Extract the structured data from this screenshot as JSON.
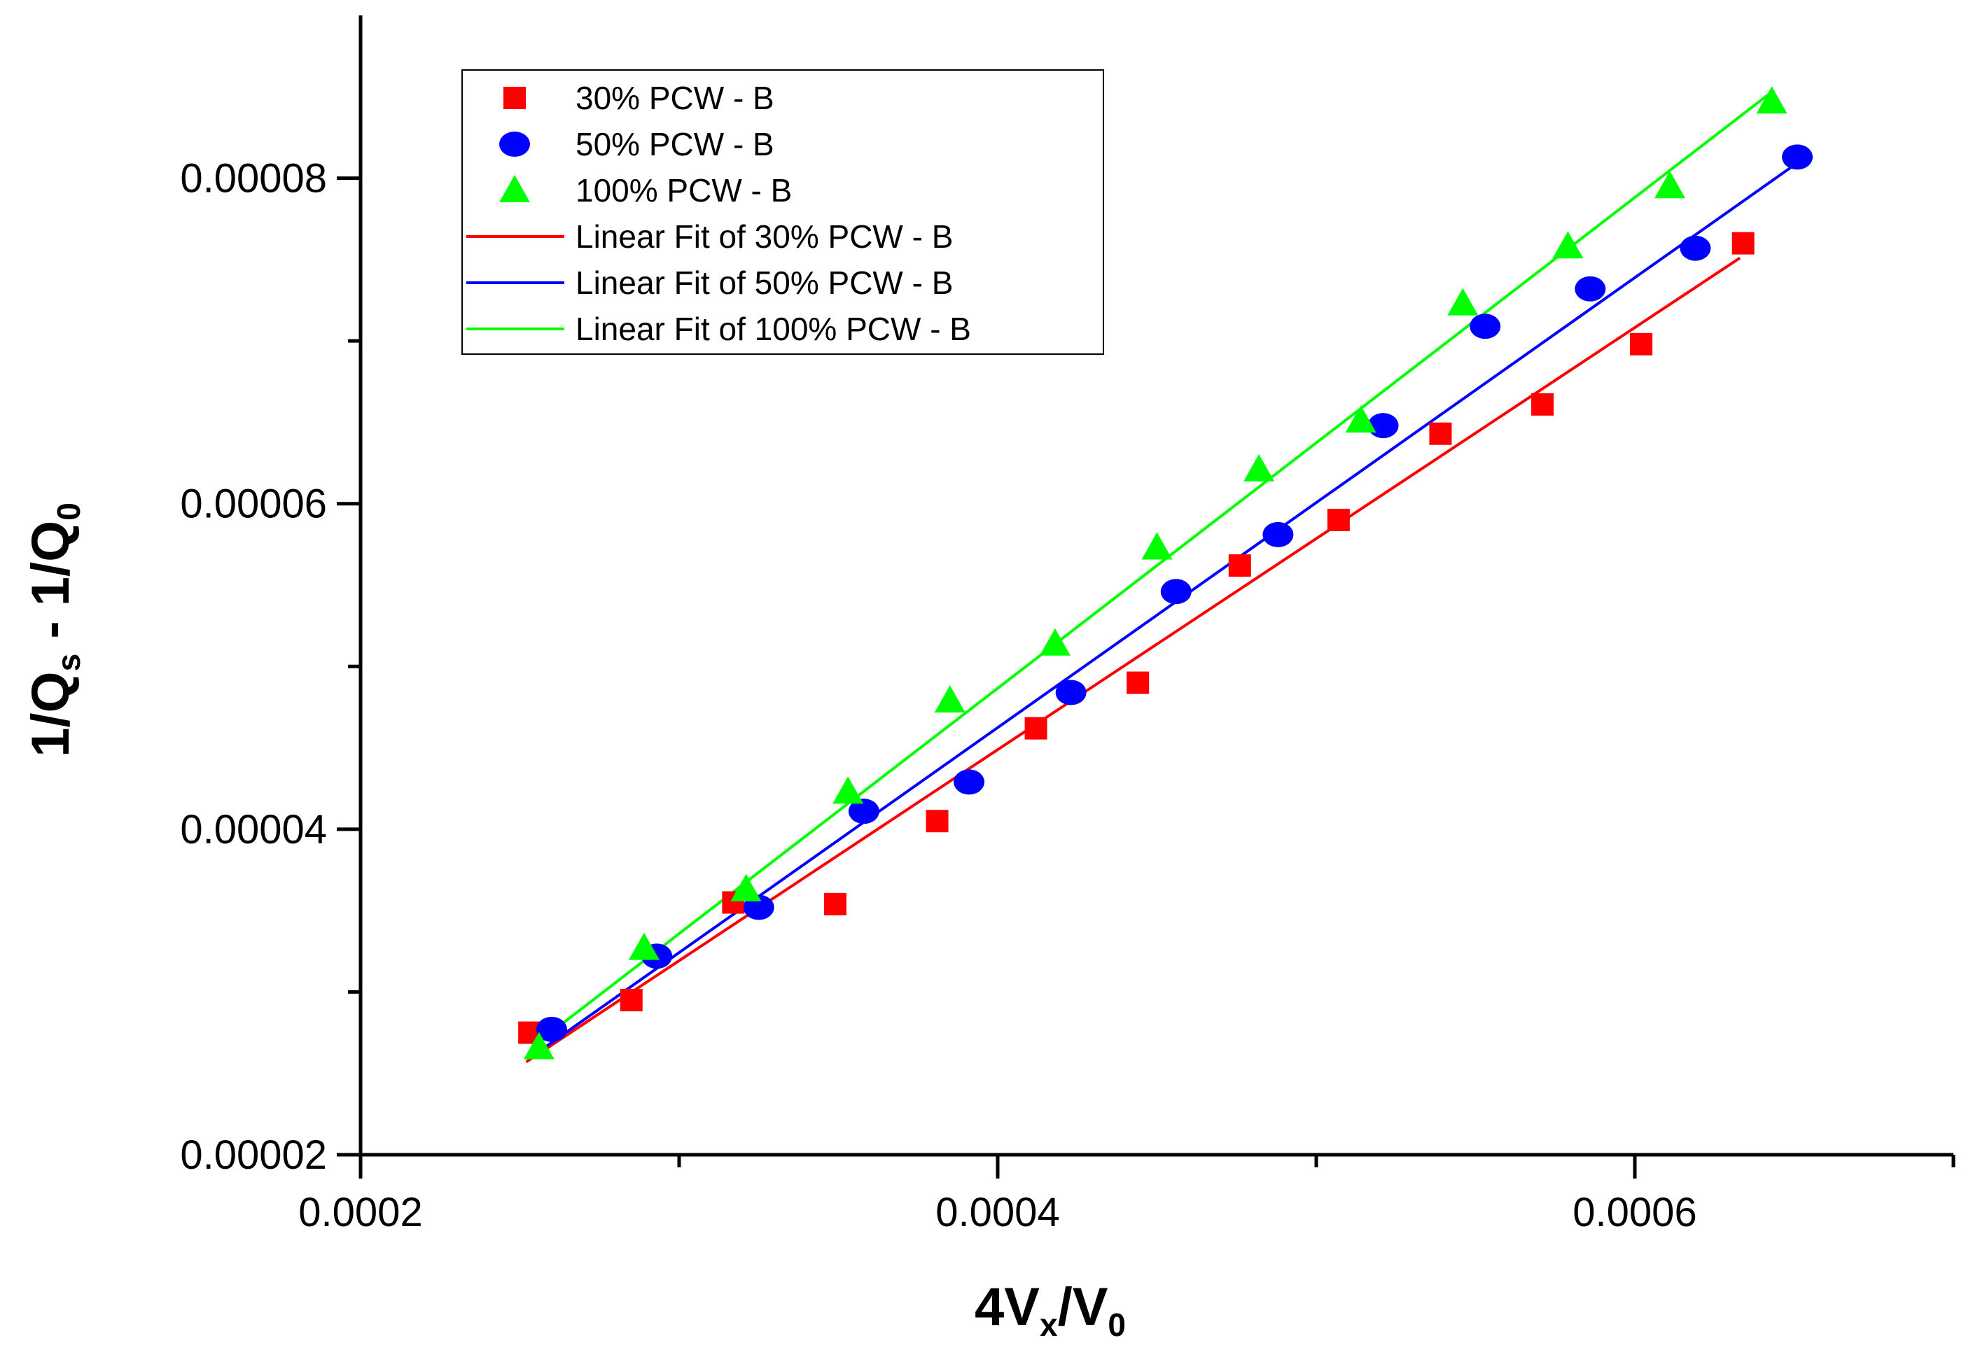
{
  "chart_data": {
    "type": "scatter",
    "xlabel": {
      "main": "4V",
      "sub1": "x",
      "mid": "/V",
      "sub2": "0"
    },
    "ylabel": {
      "main": "1/Q",
      "sub1": "s",
      "mid": " - 1/Q",
      "sub2": "0"
    },
    "xlim": [
      0.0002,
      0.0007
    ],
    "ylim": [
      2e-05,
      9e-05
    ],
    "x_ticks": [
      {
        "value": 0.0002,
        "label": "0.0002"
      },
      {
        "value": 0.0004,
        "label": "0.0004"
      },
      {
        "value": 0.0006,
        "label": "0.0006"
      }
    ],
    "x_minor_ticks": [
      0.0003,
      0.0005,
      0.0007
    ],
    "y_ticks": [
      {
        "value": 2e-05,
        "label": "0.00002"
      },
      {
        "value": 4e-05,
        "label": "0.00004"
      },
      {
        "value": 6e-05,
        "label": "0.00006"
      },
      {
        "value": 8e-05,
        "label": "0.00008"
      }
    ],
    "y_minor_ticks": [
      3e-05,
      5e-05,
      7e-05
    ],
    "legend_position": "top-left",
    "series": [
      {
        "name": "30% PCW - B",
        "marker": "square",
        "color": "#ff0000",
        "x": [
          0.000253,
          0.000285,
          0.000317,
          0.000349,
          0.000381,
          0.000412,
          0.000444,
          0.000476,
          0.000507,
          0.000539,
          0.000571,
          0.000602,
          0.000634
        ],
        "y": [
          2.75e-05,
          2.95e-05,
          3.55e-05,
          3.54e-05,
          4.05e-05,
          4.62e-05,
          4.9e-05,
          5.62e-05,
          5.9e-05,
          6.43e-05,
          6.61e-05,
          6.98e-05,
          7.6e-05
        ]
      },
      {
        "name": "50% PCW - B",
        "marker": "circle",
        "color": "#0000ff",
        "x": [
          0.00026,
          0.000293,
          0.000325,
          0.000358,
          0.000391,
          0.000423,
          0.000456,
          0.000488,
          0.000521,
          0.000553,
          0.000586,
          0.000619,
          0.000651
        ],
        "y": [
          2.77e-05,
          3.22e-05,
          3.52e-05,
          4.11e-05,
          4.29e-05,
          4.84e-05,
          5.46e-05,
          5.81e-05,
          6.48e-05,
          7.09e-05,
          7.32e-05,
          7.57e-05,
          8.13e-05
        ]
      },
      {
        "name": "100% PCW - B",
        "marker": "triangle",
        "color": "#00ff00",
        "x": [
          0.000256,
          0.000289,
          0.000321,
          0.000353,
          0.000385,
          0.000418,
          0.00045,
          0.000482,
          0.000514,
          0.000546,
          0.000579,
          0.000611,
          0.000643
        ],
        "y": [
          2.66e-05,
          3.27e-05,
          3.63e-05,
          4.23e-05,
          4.79e-05,
          5.14e-05,
          5.73e-05,
          6.21e-05,
          6.51e-05,
          7.23e-05,
          7.58e-05,
          7.95e-05,
          8.47e-05
        ]
      }
    ],
    "fits": [
      {
        "name": "Linear Fit of 30% PCW - B",
        "color": "#ff0000",
        "x": [
          0.000252,
          0.000633
        ],
        "y": [
          2.57e-05,
          7.51e-05
        ]
      },
      {
        "name": "Linear Fit of 50% PCW - B",
        "color": "#0000ff",
        "x": [
          0.000255,
          0.00065
        ],
        "y": [
          2.62e-05,
          8.08e-05
        ]
      },
      {
        "name": "Linear Fit of 100% PCW - B",
        "color": "#00ff00",
        "x": [
          0.000255,
          0.000643
        ],
        "y": [
          2.68e-05,
          8.53e-05
        ]
      }
    ]
  }
}
